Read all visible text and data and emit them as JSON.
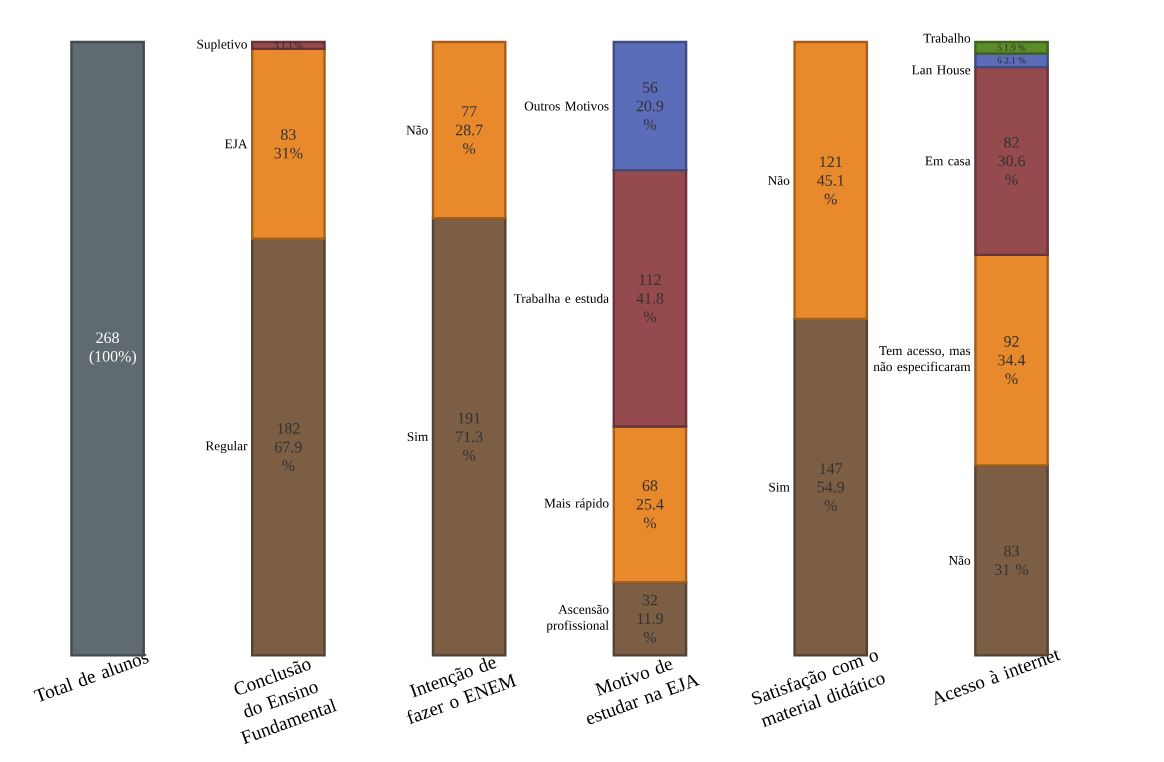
{
  "chart_data": {
    "type": "bar",
    "stacked": true,
    "data_labels": true,
    "categories": [
      "Total de alunos",
      "Conclusão do Ensino Fundamental",
      "Intenção de fazer o ENEM",
      "Motivo de estudar na EJA",
      "Satisfação com o material didático",
      "Acesso à internet"
    ],
    "series": [
      {
        "color": "#5f6b70",
        "values": [
          268,
          null,
          null,
          null,
          null,
          null
        ],
        "value_labels": [
          "268 (100%)",
          null,
          null,
          null,
          null,
          null
        ]
      },
      {
        "name": "Regular",
        "color": "#7b5e44",
        "values": [
          null,
          182,
          null,
          null,
          null,
          null
        ],
        "value_labels": [
          null,
          "182 67.9 %",
          null,
          null,
          null,
          null
        ]
      },
      {
        "name": "EJA",
        "color": "#e8892b",
        "values": [
          null,
          83,
          null,
          null,
          null,
          null
        ],
        "value_labels": [
          null,
          "83 31%",
          null,
          null,
          null,
          null
        ]
      },
      {
        "name": "Supletivo",
        "color": "#954a4e",
        "values": [
          null,
          3,
          null,
          null,
          null,
          null
        ],
        "value_labels": [
          null,
          "3 1.1 %",
          null,
          null,
          null,
          null
        ]
      },
      {
        "name": "Sim",
        "color": "#7b5e44",
        "values": [
          null,
          null,
          191,
          null,
          null,
          null
        ],
        "value_labels": [
          null,
          null,
          "191 71.3 %",
          null,
          null,
          null
        ]
      },
      {
        "name": "Não",
        "color": "#e8892b",
        "values": [
          null,
          null,
          77,
          null,
          null,
          null
        ],
        "value_labels": [
          null,
          null,
          "77 28.7 %",
          null,
          null,
          null
        ]
      },
      {
        "name": "Ascensão profissional",
        "color": "#7b5e44",
        "values": [
          null,
          null,
          null,
          32,
          null,
          null
        ],
        "value_labels": [
          null,
          null,
          null,
          "32 11.9 %",
          null,
          null
        ]
      },
      {
        "name": "Mais rápido",
        "color": "#e8892b",
        "values": [
          null,
          null,
          null,
          68,
          null,
          null
        ],
        "value_labels": [
          null,
          null,
          null,
          "68 25.4 %",
          null,
          null
        ]
      },
      {
        "name": "Trabalha e estuda",
        "color": "#954a4e",
        "values": [
          null,
          null,
          null,
          112,
          null,
          null
        ],
        "value_labels": [
          null,
          null,
          null,
          "112 41.8 %",
          null,
          null
        ]
      },
      {
        "name": "Outros Motivos",
        "color": "#5b6db8",
        "values": [
          null,
          null,
          null,
          56,
          null,
          null
        ],
        "value_labels": [
          null,
          null,
          null,
          "56 20.9 %",
          null,
          null
        ]
      },
      {
        "name": "Sim",
        "color": "#7b5e44",
        "values": [
          null,
          null,
          null,
          null,
          147,
          null
        ],
        "value_labels": [
          null,
          null,
          null,
          null,
          "147 54.9 %",
          null
        ]
      },
      {
        "name": "Não",
        "color": "#e8892b",
        "values": [
          null,
          null,
          null,
          null,
          121,
          null
        ],
        "value_labels": [
          null,
          null,
          null,
          null,
          "121 45.1 %",
          null
        ]
      },
      {
        "name": "Não",
        "color": "#7b5e44",
        "values": [
          null,
          null,
          null,
          null,
          null,
          83
        ],
        "value_labels": [
          null,
          null,
          null,
          null,
          null,
          "83 31 %"
        ]
      },
      {
        "name": "Tem acesso, mas não especificaram",
        "color": "#e8892b",
        "values": [
          null,
          null,
          null,
          null,
          null,
          92
        ],
        "value_labels": [
          null,
          null,
          null,
          null,
          null,
          "92 34.4 %"
        ]
      },
      {
        "name": "Em casa",
        "color": "#954a4e",
        "values": [
          null,
          null,
          null,
          null,
          null,
          82
        ],
        "value_labels": [
          null,
          null,
          null,
          null,
          null,
          "82 30.6 %"
        ]
      },
      {
        "name": "Lan House",
        "color": "#5b6db8",
        "values": [
          null,
          null,
          null,
          null,
          null,
          6
        ],
        "value_labels": [
          null,
          null,
          null,
          null,
          null,
          "6 2.1 %"
        ]
      },
      {
        "name": "Trabalho",
        "color": "#5b8c2a",
        "values": [
          null,
          null,
          null,
          null,
          null,
          5
        ],
        "value_labels": [
          null,
          null,
          null,
          null,
          null,
          "5 1.9 %"
        ]
      }
    ]
  }
}
